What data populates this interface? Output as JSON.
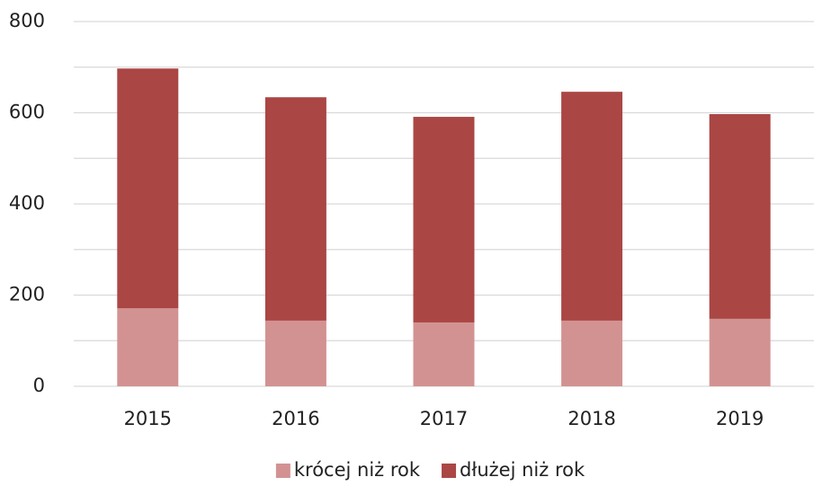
{
  "chart_data": {
    "type": "stacked_bar",
    "categories": [
      "2015",
      "2016",
      "2017",
      "2018",
      "2019"
    ],
    "series": [
      {
        "name": "krócej niż rok",
        "color": "#d39292",
        "values": [
          171,
          144,
          140,
          144,
          148
        ]
      },
      {
        "name": "dłużej niż rok",
        "color": "#aa4644",
        "values": [
          526,
          490,
          451,
          502,
          449
        ]
      }
    ],
    "ylim": [
      0,
      800
    ],
    "yticks": [
      0,
      200,
      400,
      600,
      800
    ],
    "minor_yticks": [
      100,
      300,
      500,
      700
    ],
    "grid": true,
    "legend": "bottom"
  }
}
